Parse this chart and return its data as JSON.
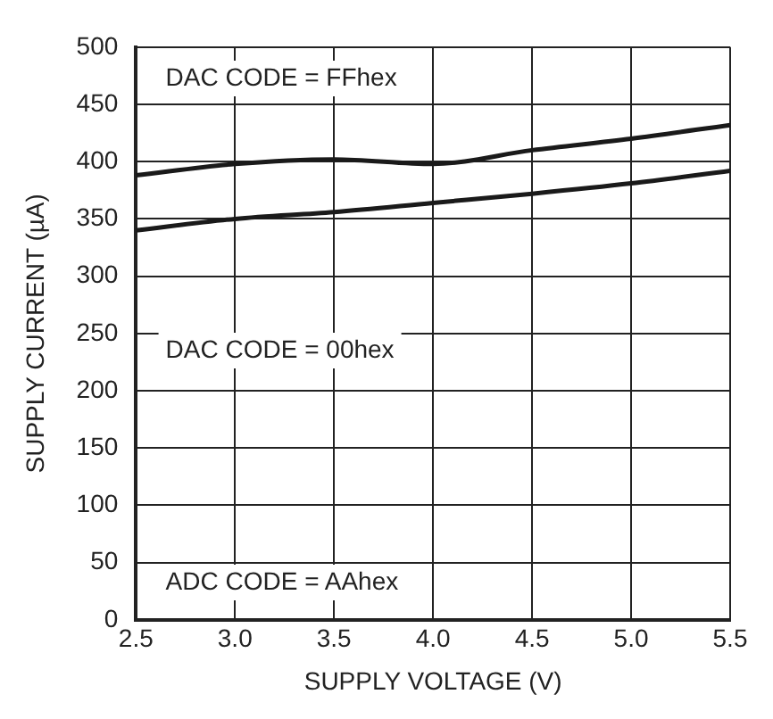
{
  "chart_data": {
    "type": "line",
    "xlabel": "SUPPLY VOLTAGE (V)",
    "ylabel": "SUPPLY CURRENT (µA)",
    "x": [
      2.5,
      3.0,
      3.5,
      4.0,
      4.5,
      5.0,
      5.5
    ],
    "series": [
      {
        "color": "#1a1a1a",
        "values": [
          388,
          398,
          402,
          398,
          410,
          420,
          432
        ]
      },
      {
        "color": "#1a1a1a",
        "values": [
          340,
          350,
          356,
          364,
          372,
          381,
          392
        ]
      }
    ],
    "xlim": [
      2.5,
      5.5
    ],
    "xticks": [
      {
        "value": 2.5,
        "label": "2.5"
      },
      {
        "value": 3,
        "label": "3.0"
      },
      {
        "value": 3.5,
        "label": "3.5"
      },
      {
        "value": 4,
        "label": "4.0"
      },
      {
        "value": 4.5,
        "label": "4.5"
      },
      {
        "value": 5,
        "label": "5.0"
      },
      {
        "value": 5.5,
        "label": "5.5"
      }
    ],
    "ylim": [
      0,
      500
    ],
    "yticks": [
      0,
      50,
      100,
      150,
      200,
      250,
      300,
      350,
      400,
      450,
      500
    ],
    "grid": true,
    "legend": false,
    "marker": "none",
    "line_style": "solid",
    "annotations": [
      "DAC CODE = FFhex",
      "DAC CODE = 00hex",
      "ADC CODE = AAhex"
    ]
  }
}
